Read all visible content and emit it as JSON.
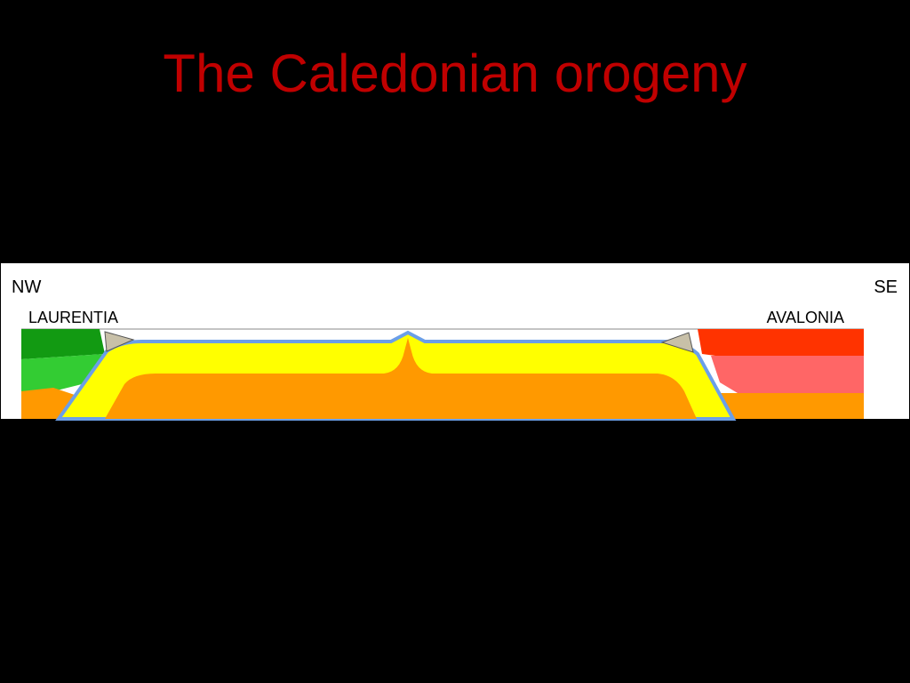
{
  "title": "The Caledonian orogeny",
  "diagram": {
    "left_direction": "NW",
    "right_direction": "SE",
    "left_continent": "LAURENTIA",
    "right_continent": "AVALONIA"
  }
}
